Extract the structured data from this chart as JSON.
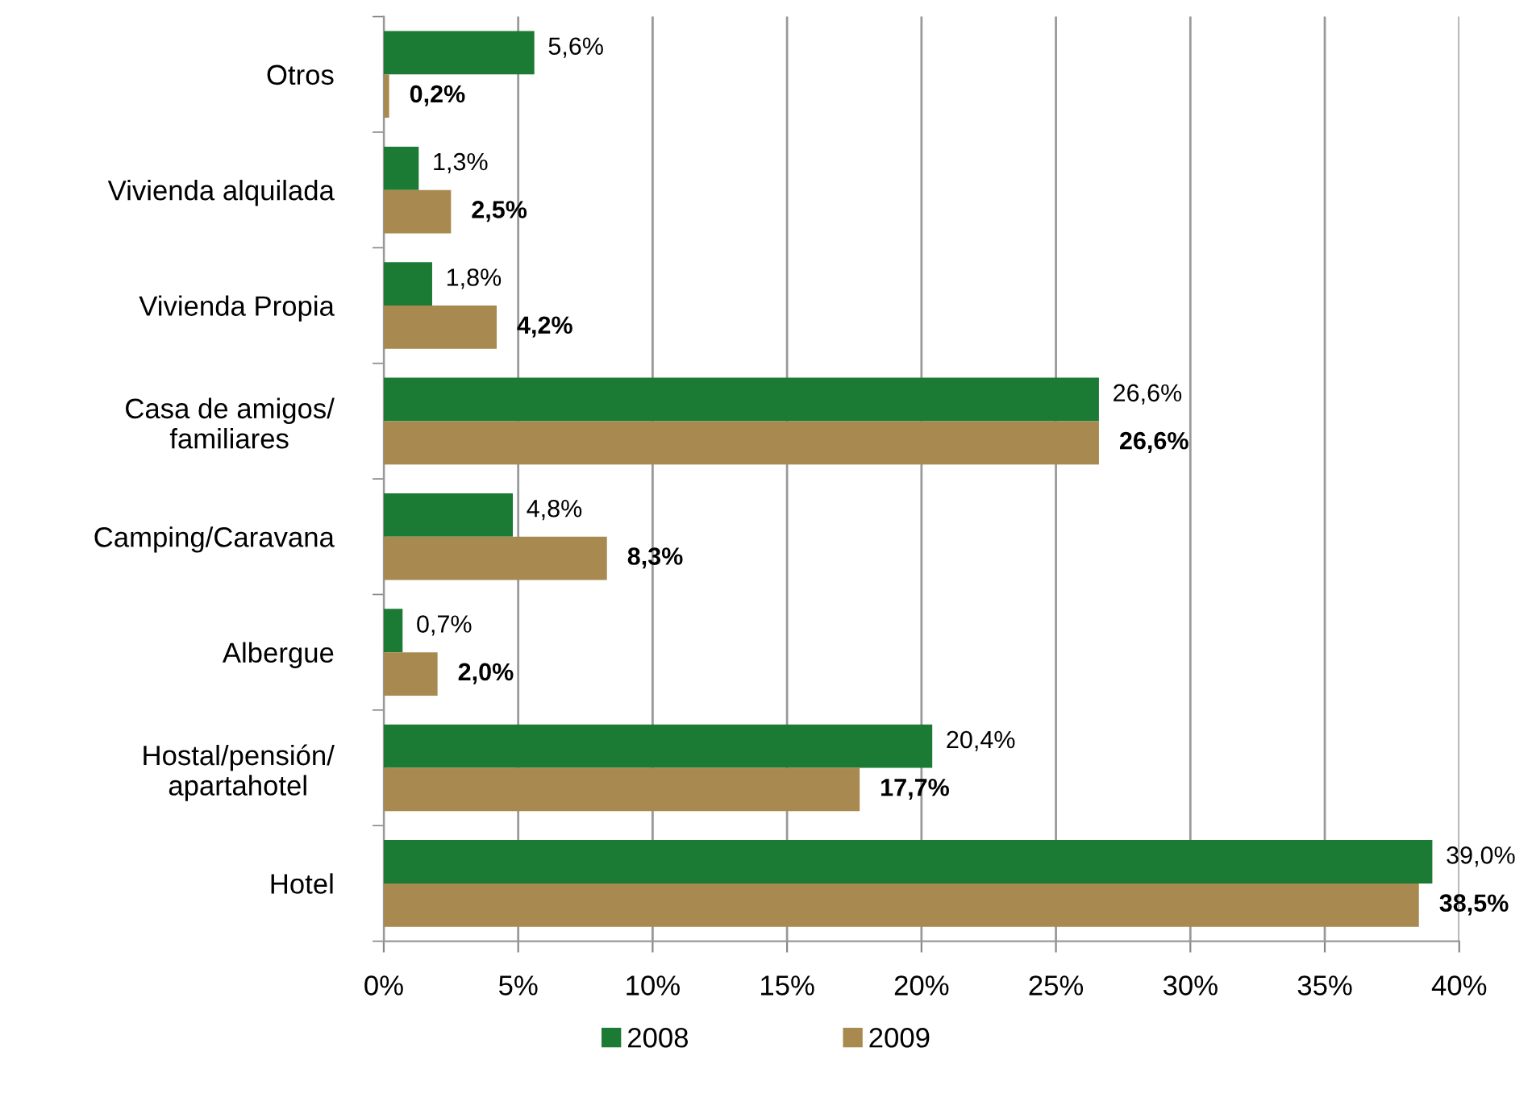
{
  "chart_data": {
    "type": "bar",
    "orientation": "horizontal",
    "categories": [
      "Otros",
      "Vivienda alquilada",
      "Vivienda Propia",
      "Casa de amigos/\nfamiliares",
      "Camping/Caravana",
      "Albergue",
      "Hostal/pensión/\napartahotel",
      "Hotel"
    ],
    "series": [
      {
        "name": "2008",
        "color": "#1b7a33",
        "values": [
          5.6,
          1.3,
          1.8,
          26.6,
          4.8,
          0.7,
          20.4,
          39.0
        ],
        "value_labels": [
          "5,6%",
          "1,3%",
          "1,8%",
          "26,6%",
          "4,8%",
          "0,7%",
          "20,4%",
          "39,0%"
        ]
      },
      {
        "name": "2009",
        "color": "#a8894f",
        "values": [
          0.2,
          2.5,
          4.2,
          26.6,
          8.3,
          2.0,
          17.7,
          38.5
        ],
        "value_labels": [
          "0,2%",
          "2,5%",
          "4,2%",
          "26,6%",
          "8,3%",
          "2,0%",
          "17,7%",
          "38,5%"
        ]
      }
    ],
    "xlim": [
      0,
      40
    ],
    "xticks": [
      {
        "value": 0,
        "label": "0%"
      },
      {
        "value": 5,
        "label": "5%"
      },
      {
        "value": 10,
        "label": "10%"
      },
      {
        "value": 15,
        "label": "15%"
      },
      {
        "value": 20,
        "label": "20%"
      },
      {
        "value": 25,
        "label": "25%"
      },
      {
        "value": 30,
        "label": "30%"
      },
      {
        "value": 35,
        "label": "35%"
      },
      {
        "value": 40,
        "label": "40%"
      }
    ],
    "grid": "x",
    "legend": "bottom"
  }
}
